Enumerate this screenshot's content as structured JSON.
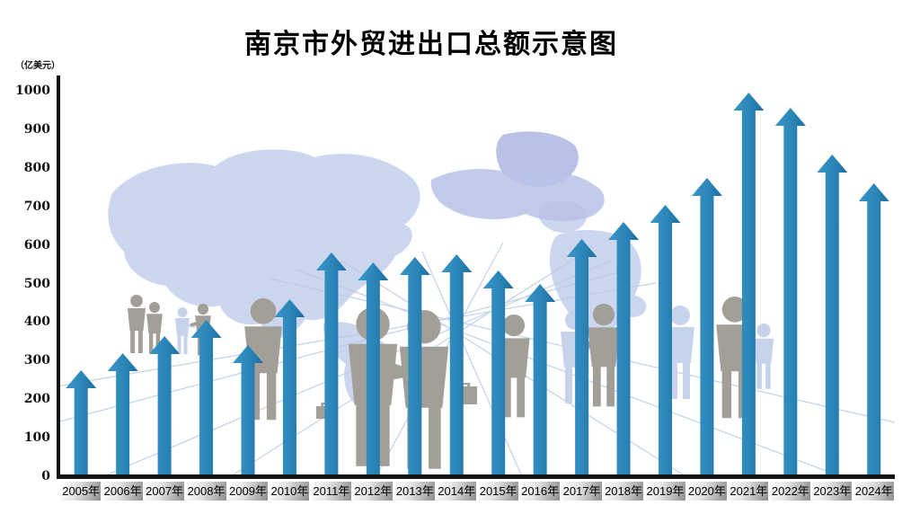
{
  "title": "南京市外贸进出口总额示意图",
  "chart_data": {
    "type": "bar",
    "title": "南京市外贸进出口总额示意图",
    "unit_label": "（亿美元）",
    "xlabel": "",
    "ylabel": "（亿美元）",
    "categories": [
      "2005年",
      "2006年",
      "2007年",
      "2008年",
      "2009年",
      "2010年",
      "2011年",
      "2012年",
      "2013年",
      "2014年",
      "2015年",
      "2016年",
      "2017年",
      "2018年",
      "2019年",
      "2020年",
      "2021年",
      "2022年",
      "2023年",
      "2024年"
    ],
    "values": [
      270,
      315,
      360,
      400,
      335,
      455,
      575,
      550,
      565,
      570,
      530,
      495,
      610,
      655,
      700,
      770,
      990,
      950,
      830,
      755
    ],
    "ylim": [
      0,
      1000
    ],
    "yticks": [
      0,
      100,
      200,
      300,
      400,
      500,
      600,
      700,
      800,
      900,
      1000
    ],
    "grid": false,
    "legend": null,
    "bar_style": "upward-arrow",
    "bar_color": "#2b85b7",
    "bar_color_light": "#3b96c8",
    "bar_color_dark": "#1d6e9e",
    "axis_color": "#141414",
    "xtick_box_gradient": [
      "#ffffff",
      "#8e8e8e"
    ],
    "background_decorations": [
      "world-map",
      "business-people-silhouettes",
      "perspective-floor-lines"
    ]
  }
}
